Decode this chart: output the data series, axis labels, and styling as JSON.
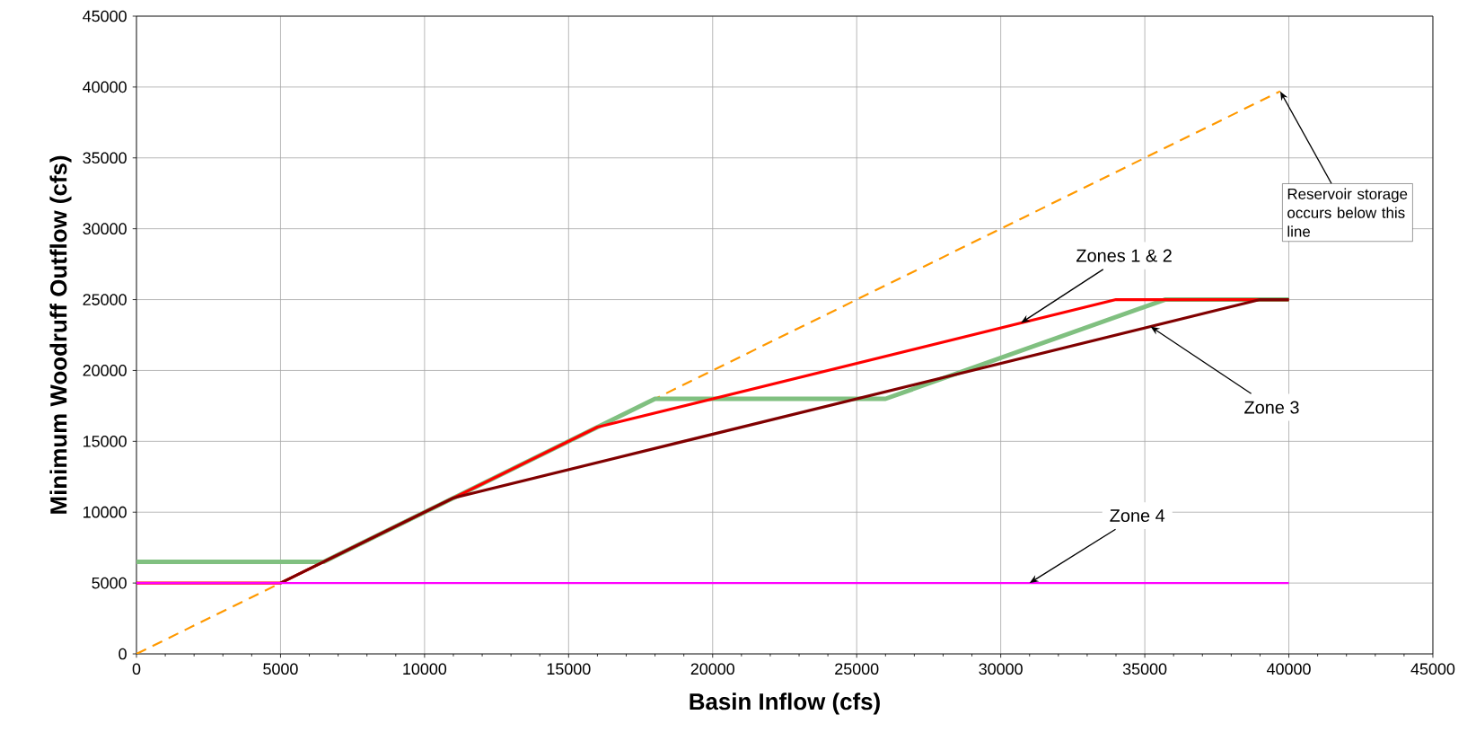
{
  "chart_data": {
    "type": "line",
    "xlabel": "Basin Inflow (cfs)",
    "ylabel": "Minimum Woodruff Outflow (cfs)",
    "xlim": [
      0,
      45000
    ],
    "ylim": [
      0,
      45000
    ],
    "xticks": [
      0,
      5000,
      10000,
      15000,
      20000,
      25000,
      30000,
      35000,
      40000,
      45000
    ],
    "yticks": [
      0,
      5000,
      10000,
      15000,
      20000,
      25000,
      30000,
      35000,
      40000,
      45000
    ],
    "grid": true,
    "marker": "none",
    "series": [
      {
        "color": "#ff9900",
        "line_style": "dashed",
        "x": [
          0,
          39700
        ],
        "values": [
          0,
          39700
        ]
      },
      {
        "color": "#80c080",
        "line_style": "solid",
        "x": [
          0,
          6500,
          18000,
          26000,
          35700,
          40000
        ],
        "values": [
          6500,
          6500,
          18000,
          18000,
          25000,
          25000
        ]
      },
      {
        "color": "#ff0000",
        "line_style": "solid",
        "x": [
          0,
          5000,
          11000,
          16000,
          34000,
          40000
        ],
        "values": [
          5000,
          5000,
          11000,
          16000,
          25000,
          25000
        ]
      },
      {
        "color": "#800000",
        "line_style": "solid",
        "x": [
          5000,
          11000,
          39000,
          40000
        ],
        "values": [
          5000,
          11000,
          25000,
          25000
        ]
      },
      {
        "color": "#ff00ff",
        "line_style": "solid",
        "x": [
          0,
          40000
        ],
        "values": [
          5000,
          5000
        ]
      }
    ],
    "annotations": [
      {
        "text": "Zones 1 & 2",
        "x": 30700,
        "y": 23350
      },
      {
        "text": "Zone 3",
        "x": 35200,
        "y": 23100
      },
      {
        "text": "Zone 4",
        "x": 31000,
        "y": 5000
      },
      {
        "text": "Reservoir storage occurs below this line",
        "x": 39700,
        "y": 39700
      }
    ]
  }
}
